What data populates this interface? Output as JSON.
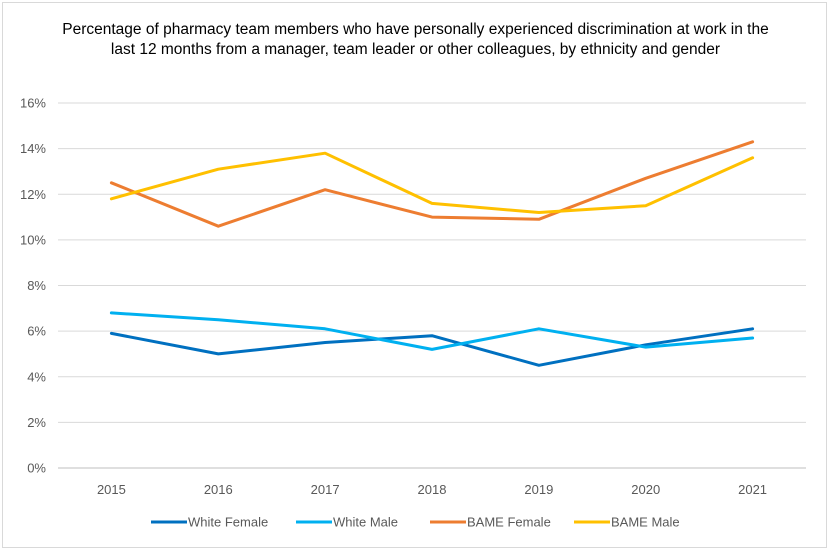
{
  "chart_data": {
    "type": "line",
    "title": "Percentage of pharmacy team members who have personally experienced discrimination at work in the last 12 months from a manager, team leader or other colleagues, by ethnicity and gender",
    "xlabel": "",
    "ylabel": "",
    "categories": [
      "2015",
      "2016",
      "2017",
      "2018",
      "2019",
      "2020",
      "2021"
    ],
    "ylim": [
      0,
      16
    ],
    "yticks": [
      "0%",
      "2%",
      "4%",
      "6%",
      "8%",
      "10%",
      "12%",
      "14%",
      "16%"
    ],
    "grid": true,
    "legend_position": "bottom",
    "series": [
      {
        "name": "White Female",
        "color": "#0070C0",
        "values": [
          5.9,
          5.0,
          5.5,
          5.8,
          4.5,
          5.4,
          6.1
        ]
      },
      {
        "name": "White Male",
        "color": "#00B0F0",
        "values": [
          6.8,
          6.5,
          6.1,
          5.2,
          6.1,
          5.3,
          5.7
        ]
      },
      {
        "name": "BAME Female",
        "color": "#ED7D31",
        "values": [
          12.5,
          10.6,
          12.2,
          11.0,
          10.9,
          12.7,
          14.3
        ]
      },
      {
        "name": "BAME Male",
        "color": "#FFC000",
        "values": [
          11.8,
          13.1,
          13.8,
          11.6,
          11.2,
          11.5,
          13.6
        ]
      }
    ]
  }
}
